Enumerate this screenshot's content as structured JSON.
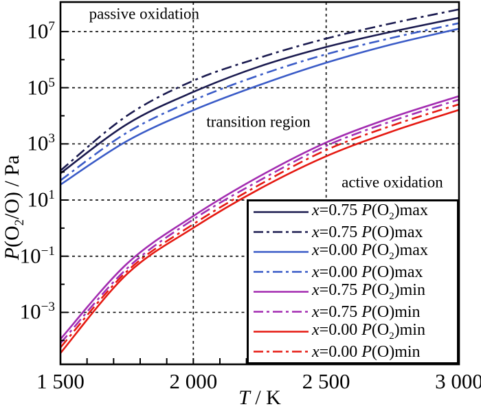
{
  "figure": {
    "background": "#ffffff",
    "axis_color": "#000000",
    "grid_color": "#111111"
  },
  "chart_data": {
    "type": "line",
    "title": "",
    "xlabel": "*T* / K",
    "ylabel": "*P*(O_{2}/O) / Pa",
    "legend_position": "lower right",
    "grid": "dashed, at labeled decades and at T=2000, T=2500",
    "x_axis": {
      "min": 1500,
      "max": 3000,
      "major_ticks": [
        1500,
        2000,
        2500,
        3000
      ],
      "tick_labels": [
        "1 500",
        "2 000",
        "2 500",
        "3 000"
      ],
      "minor_tick_step": 100,
      "gridlines_at": [
        2000,
        2500
      ]
    },
    "y_axis": {
      "scale": "log10",
      "unit": "Pa",
      "min_exponent": -4.85,
      "max_exponent": 8.05,
      "labeled_exponents": [
        7,
        5,
        3,
        1,
        -1,
        -3
      ],
      "tick_labels": [
        "10^{7}",
        "10^{5}",
        "10^{3}",
        "10^{1}",
        "10^{−1}",
        "10^{−3}"
      ],
      "minor_tick_exponents": [
        8,
        6,
        4,
        2,
        0,
        -2,
        -4
      ]
    },
    "annotations": [
      {
        "text": "passive oxidation",
        "T": 1815,
        "log10P": 7.63
      },
      {
        "text": "transition region",
        "T": 2245,
        "log10P": 3.79
      },
      {
        "text": "active oxidation",
        "T": 2749,
        "log10P": 1.64
      }
    ],
    "T": [
      1500,
      1750,
      2000,
      2250,
      2500,
      2750,
      3000
    ],
    "series": [
      {
        "label": "*x*=0.75 *P*(O_{2})max",
        "color": "#1a1a4f",
        "style": "solid",
        "log10P": [
          1.95,
          3.7,
          4.85,
          5.76,
          6.45,
          7.0,
          7.49
        ]
      },
      {
        "label": "*x*=0.75 *P*(O)max",
        "color": "#1a1a4f",
        "style": "dashdot",
        "log10P": [
          2.05,
          4.0,
          5.25,
          6.07,
          6.75,
          7.3,
          7.79
        ]
      },
      {
        "label": "*x*=0.00 *P*(O_{2})max",
        "color": "#3a5bc7",
        "style": "solid",
        "log10P": [
          1.55,
          3.1,
          4.2,
          5.1,
          5.89,
          6.55,
          7.1
        ]
      },
      {
        "label": "*x*=0.00 *P*(O)max",
        "color": "#3a5bc7",
        "style": "dashdot",
        "log10P": [
          1.7,
          3.4,
          4.55,
          5.45,
          6.19,
          6.78,
          7.3
        ]
      },
      {
        "label": "*x*=0.75 *P*(O_{2})min",
        "color": "#a32cb1",
        "style": "solid",
        "log10P": [
          -3.95,
          -1.27,
          0.43,
          1.85,
          3.05,
          3.95,
          4.7
        ]
      },
      {
        "label": "*x*=0.75 *P*(O)min",
        "color": "#a32cb1",
        "style": "dashdot",
        "log10P": [
          -4.1,
          -1.44,
          0.31,
          1.7,
          2.93,
          3.82,
          4.58
        ]
      },
      {
        "label": "*x*=0.00 *P*(O_{2})min",
        "color": "#e51911",
        "style": "solid",
        "log10P": [
          -4.45,
          -1.64,
          0.01,
          1.4,
          2.56,
          3.45,
          4.21
        ]
      },
      {
        "label": "*x*=0.00 *P*(O)min",
        "color": "#e51911",
        "style": "dashdot",
        "log10P": [
          -4.25,
          -1.54,
          0.14,
          1.55,
          2.78,
          3.66,
          4.41
        ]
      }
    ]
  }
}
